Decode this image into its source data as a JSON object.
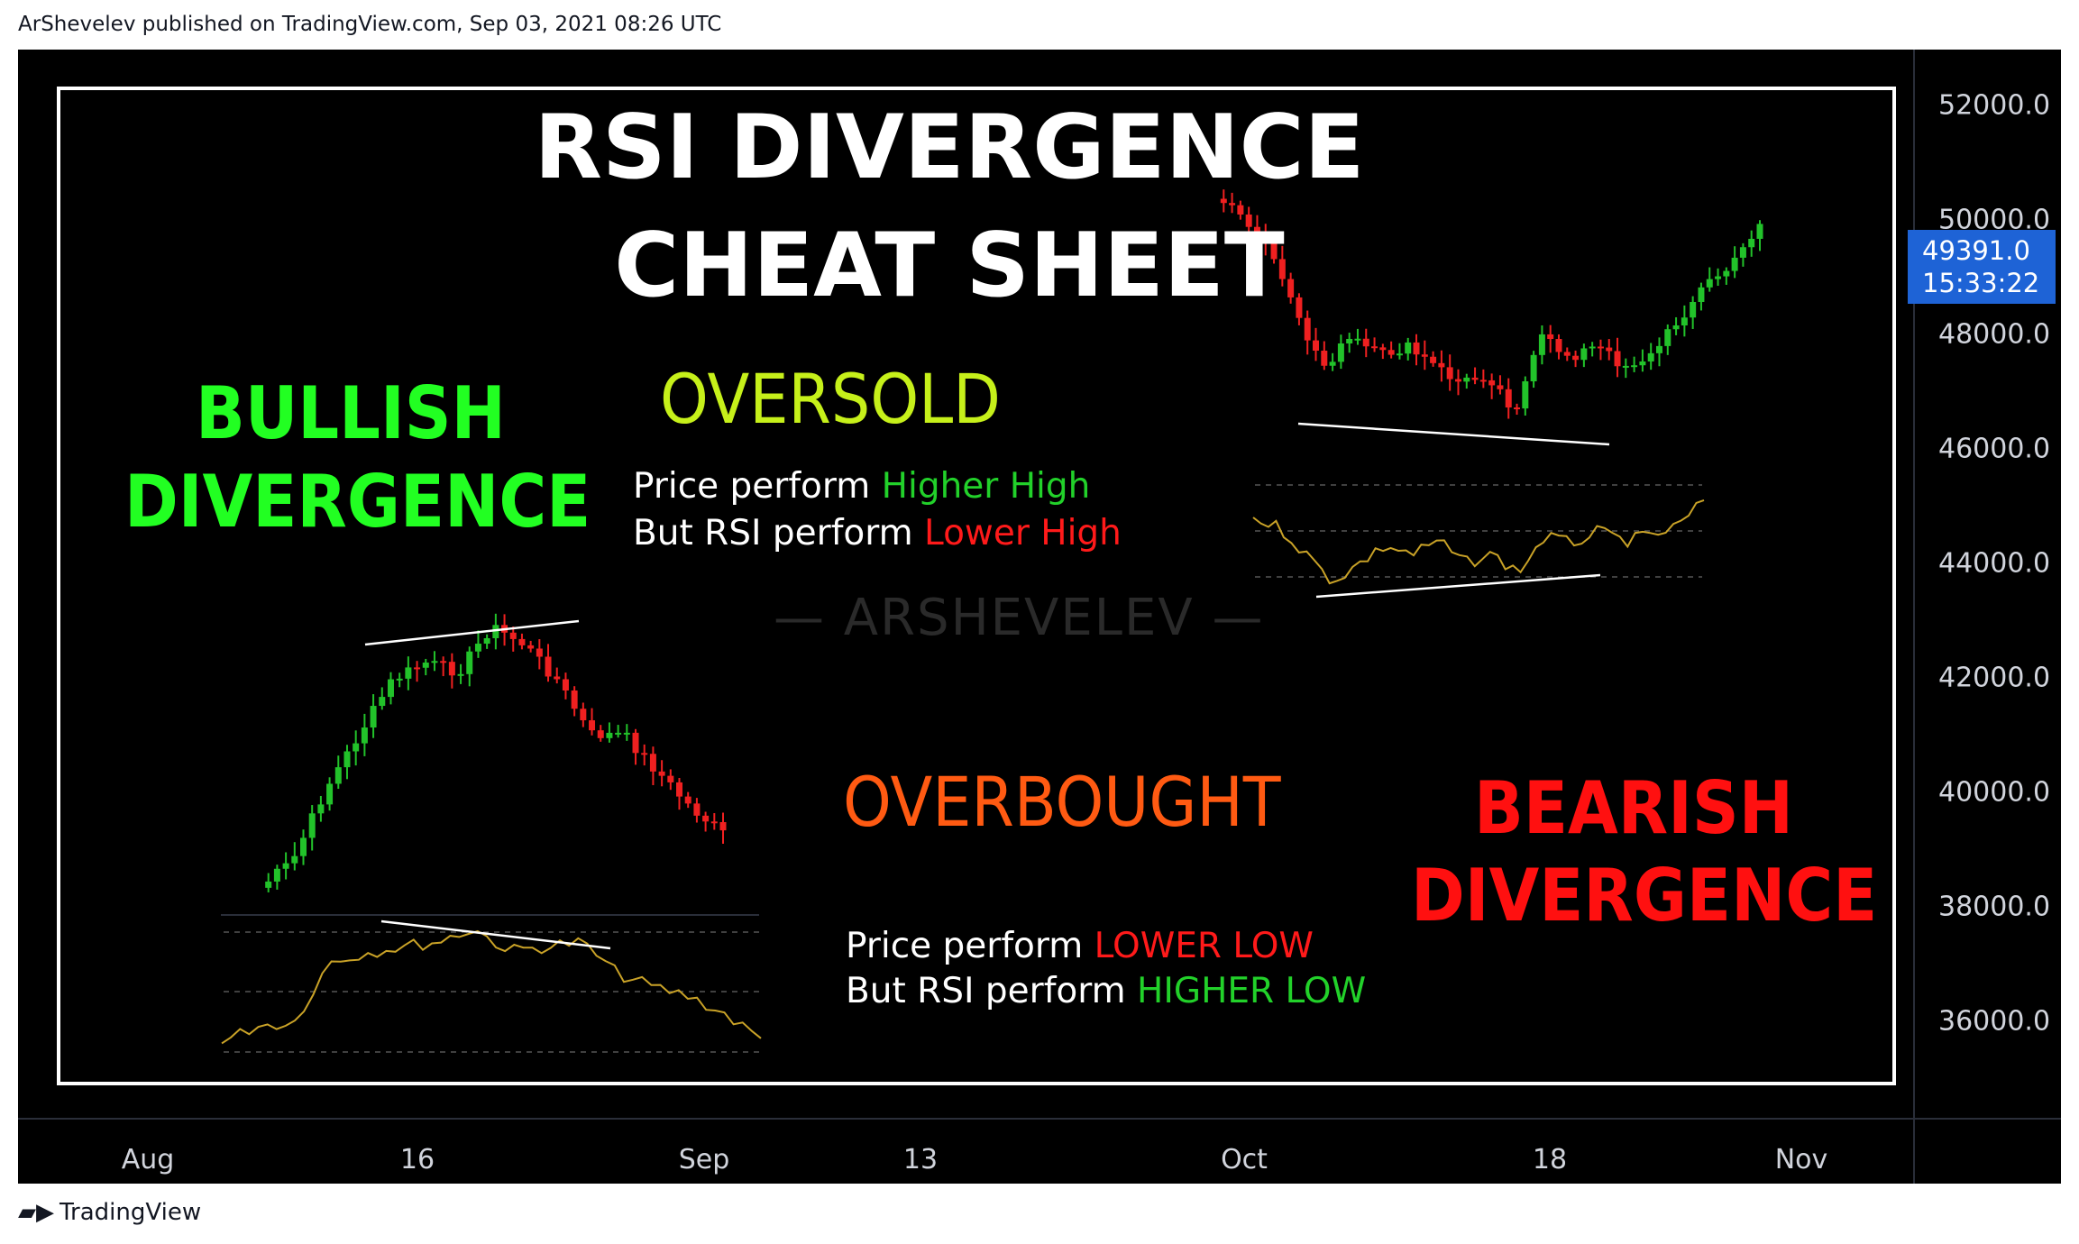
{
  "published": "ArShevelev published on TradingView.com, Sep 03, 2021 08:26 UTC",
  "footer": {
    "logo_icon": "tradingview-logo-icon",
    "brand": "TradingView"
  },
  "title": {
    "line1": "RSI DIVERGENCE",
    "line2": "CHEAT SHEET"
  },
  "bullish": {
    "line1": "BULLISH",
    "line2": "DIVERGENCE",
    "color": "#22ff22"
  },
  "bearish": {
    "line1": "BEARISH",
    "line2": "DIVERGENCE",
    "color": "#ff1010"
  },
  "oversold": {
    "label": "OVERSOLD",
    "color": "#c6f01a"
  },
  "overbought": {
    "label": "OVERBOUGHT",
    "color": "#ff5a12"
  },
  "text_top": {
    "l1_a": "Price perform ",
    "l1_b": "Higher High",
    "l2_a": "But RSI perform ",
    "l2_b": "Lower High"
  },
  "text_bottom": {
    "l1_a": "Price perform ",
    "l1_b": "LOWER LOW",
    "l2_a": "But RSI perform ",
    "l2_b": "HIGHER LOW"
  },
  "watermark": "— ARSHEVELEV —",
  "price_axis": [
    "52000.0",
    "50000.0",
    "48000.0",
    "46000.0",
    "44000.0",
    "42000.0",
    "40000.0",
    "38000.0",
    "36000.0"
  ],
  "last_price": {
    "value": "49391.0",
    "countdown": "15:33:22",
    "color": "#1e63d6"
  },
  "time_axis": [
    "Aug",
    "16",
    "Sep",
    "13",
    "Oct",
    "18",
    "Nov"
  ],
  "colors": {
    "up": "#26a69a",
    "up_bright": "#22c22a",
    "down": "#ef2020",
    "rsi": "#c9a227"
  }
}
